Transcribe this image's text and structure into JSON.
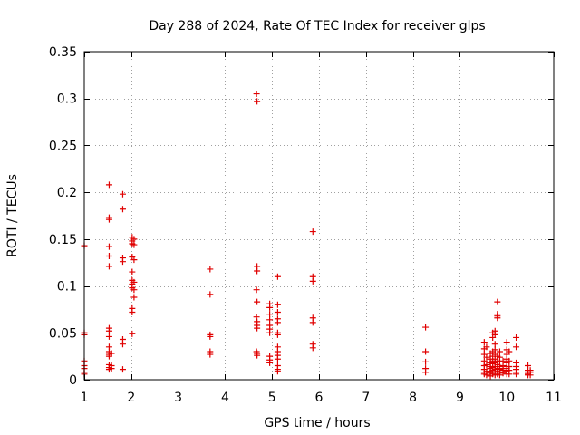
{
  "chart_data": {
    "type": "scatter",
    "title": "Day 288 of 2024, Rate Of TEC Index for receiver glps",
    "xlabel": "GPS time / hours",
    "ylabel": "ROTI / TECUs",
    "xlim": [
      1,
      11
    ],
    "ylim": [
      0,
      0.35
    ],
    "grid": true,
    "x_ticks": [
      1,
      2,
      3,
      4,
      5,
      6,
      7,
      8,
      9,
      10,
      11
    ],
    "x_tick_labels": [
      "1",
      "2",
      "3",
      "4",
      "5",
      "6",
      "7",
      "8",
      "9",
      "10",
      "11"
    ],
    "y_ticks": [
      0,
      0.05,
      0.1,
      0.15,
      0.2,
      0.25,
      0.3,
      0.35
    ],
    "y_tick_labels": [
      "0",
      "0.05",
      "0.1",
      "0.15",
      "0.2",
      "0.25",
      "0.3",
      "0.35"
    ],
    "marker": "plus",
    "color": "#e00000",
    "series": [
      {
        "name": "ROTI",
        "points": [
          [
            1.0,
            0.143
          ],
          [
            1.0,
            0.05
          ],
          [
            1.0,
            0.048
          ],
          [
            1.0,
            0.02
          ],
          [
            1.0,
            0.015
          ],
          [
            1.0,
            0.012
          ],
          [
            1.0,
            0.008
          ],
          [
            1.0,
            0.006
          ],
          [
            1.53,
            0.208
          ],
          [
            1.53,
            0.173
          ],
          [
            1.53,
            0.171
          ],
          [
            1.53,
            0.142
          ],
          [
            1.53,
            0.132
          ],
          [
            1.53,
            0.121
          ],
          [
            1.53,
            0.055
          ],
          [
            1.53,
            0.052
          ],
          [
            1.53,
            0.046
          ],
          [
            1.53,
            0.035
          ],
          [
            1.53,
            0.03
          ],
          [
            1.53,
            0.027
          ],
          [
            1.53,
            0.025
          ],
          [
            1.53,
            0.016
          ],
          [
            1.53,
            0.013
          ],
          [
            1.53,
            0.011
          ],
          [
            1.58,
            0.028
          ],
          [
            1.58,
            0.015
          ],
          [
            1.58,
            0.012
          ],
          [
            1.82,
            0.198
          ],
          [
            1.82,
            0.182
          ],
          [
            1.82,
            0.13
          ],
          [
            1.82,
            0.126
          ],
          [
            1.82,
            0.043
          ],
          [
            1.82,
            0.038
          ],
          [
            1.82,
            0.011
          ],
          [
            2.02,
            0.152
          ],
          [
            2.02,
            0.148
          ],
          [
            2.02,
            0.145
          ],
          [
            2.02,
            0.131
          ],
          [
            2.02,
            0.115
          ],
          [
            2.02,
            0.106
          ],
          [
            2.02,
            0.102
          ],
          [
            2.02,
            0.098
          ],
          [
            2.02,
            0.076
          ],
          [
            2.02,
            0.072
          ],
          [
            2.02,
            0.049
          ],
          [
            2.06,
            0.15
          ],
          [
            2.06,
            0.144
          ],
          [
            2.06,
            0.128
          ],
          [
            2.06,
            0.104
          ],
          [
            2.06,
            0.096
          ],
          [
            2.06,
            0.088
          ],
          [
            3.68,
            0.118
          ],
          [
            3.68,
            0.091
          ],
          [
            3.68,
            0.048
          ],
          [
            3.68,
            0.046
          ],
          [
            3.68,
            0.03
          ],
          [
            3.68,
            0.027
          ],
          [
            4.67,
            0.305
          ],
          [
            4.68,
            0.297
          ],
          [
            4.68,
            0.121
          ],
          [
            4.68,
            0.116
          ],
          [
            4.67,
            0.096
          ],
          [
            4.68,
            0.083
          ],
          [
            4.67,
            0.067
          ],
          [
            4.68,
            0.062
          ],
          [
            4.68,
            0.058
          ],
          [
            4.68,
            0.055
          ],
          [
            4.67,
            0.03
          ],
          [
            4.68,
            0.028
          ],
          [
            4.68,
            0.026
          ],
          [
            4.95,
            0.081
          ],
          [
            4.95,
            0.077
          ],
          [
            4.95,
            0.07
          ],
          [
            4.95,
            0.064
          ],
          [
            4.95,
            0.058
          ],
          [
            4.95,
            0.054
          ],
          [
            4.95,
            0.05
          ],
          [
            4.95,
            0.025
          ],
          [
            4.95,
            0.021
          ],
          [
            4.95,
            0.018
          ],
          [
            5.12,
            0.11
          ],
          [
            5.12,
            0.08
          ],
          [
            5.12,
            0.072
          ],
          [
            5.12,
            0.065
          ],
          [
            5.12,
            0.061
          ],
          [
            5.12,
            0.05
          ],
          [
            5.12,
            0.048
          ],
          [
            5.12,
            0.035
          ],
          [
            5.12,
            0.03
          ],
          [
            5.12,
            0.026
          ],
          [
            5.12,
            0.022
          ],
          [
            5.12,
            0.015
          ],
          [
            5.12,
            0.011
          ],
          [
            5.12,
            0.009
          ],
          [
            5.87,
            0.158
          ],
          [
            5.87,
            0.11
          ],
          [
            5.87,
            0.105
          ],
          [
            5.87,
            0.066
          ],
          [
            5.87,
            0.061
          ],
          [
            5.87,
            0.038
          ],
          [
            5.87,
            0.034
          ],
          [
            8.27,
            0.056
          ],
          [
            8.27,
            0.03
          ],
          [
            8.27,
            0.019
          ],
          [
            8.27,
            0.012
          ],
          [
            8.27,
            0.008
          ],
          [
            9.52,
            0.04
          ],
          [
            9.52,
            0.033
          ],
          [
            9.52,
            0.027
          ],
          [
            9.52,
            0.02
          ],
          [
            9.52,
            0.015
          ],
          [
            9.52,
            0.011
          ],
          [
            9.52,
            0.008
          ],
          [
            9.52,
            0.006
          ],
          [
            9.57,
            0.035
          ],
          [
            9.57,
            0.024
          ],
          [
            9.57,
            0.016
          ],
          [
            9.57,
            0.009
          ],
          [
            9.57,
            0.005
          ],
          [
            9.65,
            0.028
          ],
          [
            9.65,
            0.022
          ],
          [
            9.65,
            0.018
          ],
          [
            9.65,
            0.014
          ],
          [
            9.65,
            0.012
          ],
          [
            9.65,
            0.009
          ],
          [
            9.65,
            0.007
          ],
          [
            9.65,
            0.004
          ],
          [
            9.7,
            0.05
          ],
          [
            9.7,
            0.045
          ],
          [
            9.7,
            0.03
          ],
          [
            9.7,
            0.025
          ],
          [
            9.7,
            0.02
          ],
          [
            9.7,
            0.017
          ],
          [
            9.7,
            0.013
          ],
          [
            9.7,
            0.01
          ],
          [
            9.7,
            0.006
          ],
          [
            9.75,
            0.052
          ],
          [
            9.75,
            0.048
          ],
          [
            9.75,
            0.038
          ],
          [
            9.75,
            0.032
          ],
          [
            9.75,
            0.027
          ],
          [
            9.75,
            0.022
          ],
          [
            9.75,
            0.018
          ],
          [
            9.75,
            0.014
          ],
          [
            9.75,
            0.011
          ],
          [
            9.75,
            0.008
          ],
          [
            9.75,
            0.005
          ],
          [
            9.8,
            0.083
          ],
          [
            9.8,
            0.07
          ],
          [
            9.8,
            0.068
          ],
          [
            9.8,
            0.066
          ],
          [
            9.8,
            0.025
          ],
          [
            9.8,
            0.02
          ],
          [
            9.8,
            0.016
          ],
          [
            9.8,
            0.012
          ],
          [
            9.8,
            0.009
          ],
          [
            9.8,
            0.006
          ],
          [
            9.85,
            0.03
          ],
          [
            9.85,
            0.024
          ],
          [
            9.85,
            0.019
          ],
          [
            9.85,
            0.014
          ],
          [
            9.85,
            0.011
          ],
          [
            9.85,
            0.008
          ],
          [
            9.85,
            0.005
          ],
          [
            9.92,
            0.02
          ],
          [
            9.92,
            0.015
          ],
          [
            9.92,
            0.012
          ],
          [
            9.92,
            0.01
          ],
          [
            9.92,
            0.007
          ],
          [
            10.0,
            0.04
          ],
          [
            10.0,
            0.032
          ],
          [
            10.0,
            0.027
          ],
          [
            10.0,
            0.022
          ],
          [
            10.0,
            0.018
          ],
          [
            10.0,
            0.014
          ],
          [
            10.0,
            0.012
          ],
          [
            10.0,
            0.009
          ],
          [
            10.0,
            0.006
          ],
          [
            10.05,
            0.03
          ],
          [
            10.05,
            0.02
          ],
          [
            10.05,
            0.014
          ],
          [
            10.05,
            0.01
          ],
          [
            10.05,
            0.006
          ],
          [
            10.2,
            0.045
          ],
          [
            10.2,
            0.035
          ],
          [
            10.2,
            0.018
          ],
          [
            10.2,
            0.014
          ],
          [
            10.2,
            0.011
          ],
          [
            10.2,
            0.008
          ],
          [
            10.2,
            0.006
          ],
          [
            10.45,
            0.015
          ],
          [
            10.45,
            0.01
          ],
          [
            10.45,
            0.008
          ],
          [
            10.45,
            0.006
          ],
          [
            10.45,
            0.005
          ],
          [
            10.5,
            0.01
          ],
          [
            10.5,
            0.008
          ],
          [
            10.5,
            0.005
          ]
        ]
      }
    ]
  }
}
